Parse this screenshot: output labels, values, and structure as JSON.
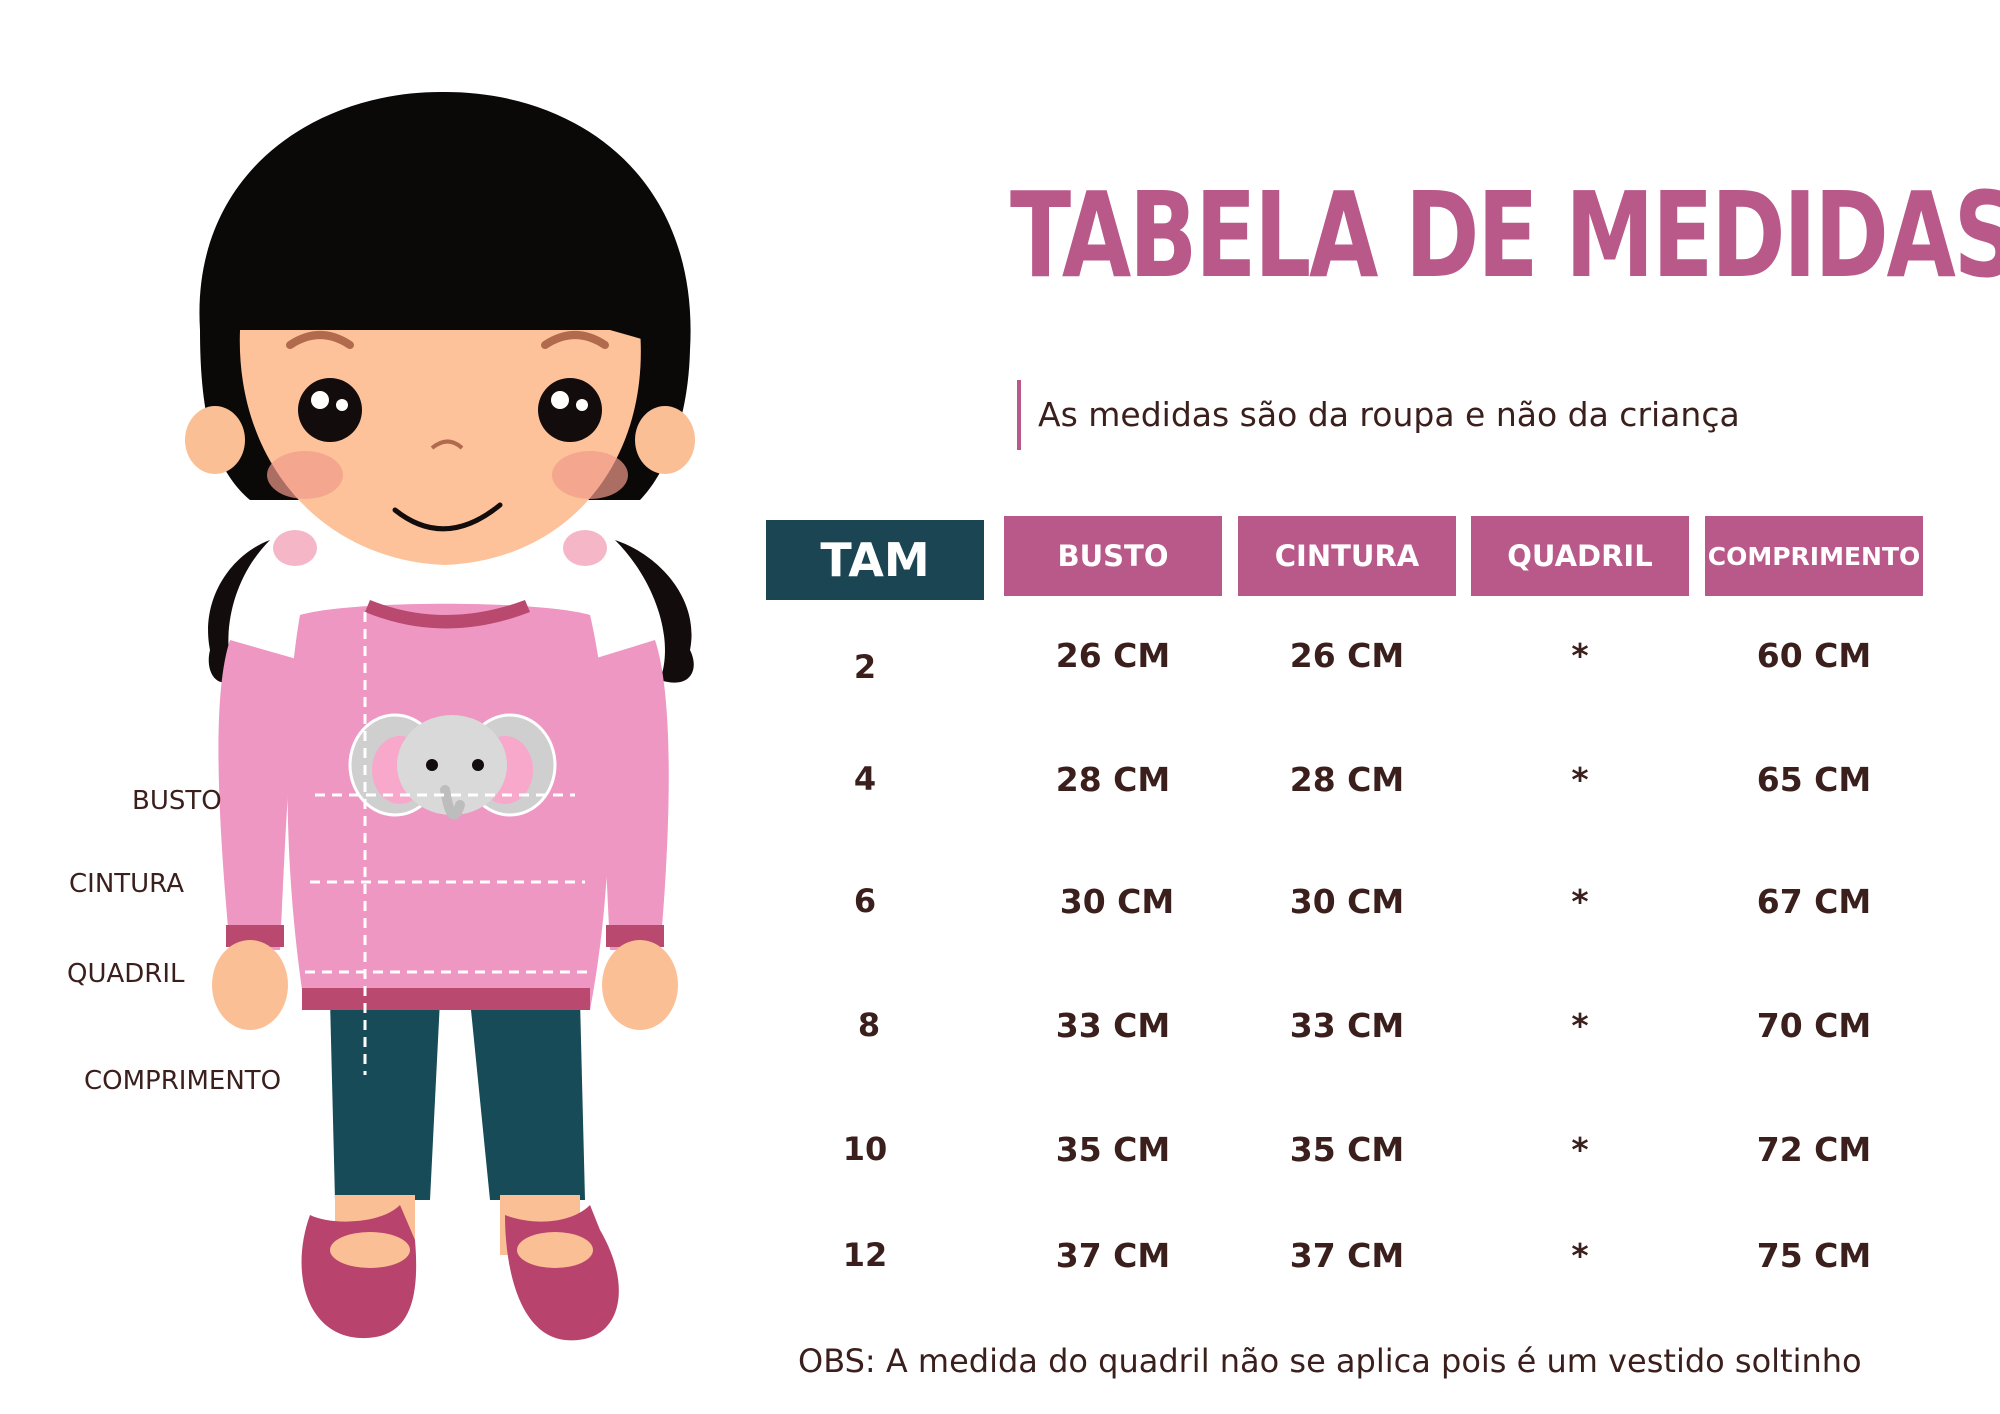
{
  "title": "TABELA DE MEDIDAS",
  "subtitle": "As medidas são da roupa e não da criança",
  "table": {
    "headers": [
      "TAM",
      "BUSTO",
      "CINTURA",
      "QUADRIL",
      "COMPRIMENTO"
    ],
    "rows": [
      [
        "2",
        "26 CM",
        "26 CM",
        "*",
        "60 CM"
      ],
      [
        "4",
        "28 CM",
        "28 CM",
        "*",
        "65 CM"
      ],
      [
        "6",
        "30 CM",
        "30 CM",
        "*",
        "67 CM"
      ],
      [
        "8",
        "33 CM",
        "33 CM",
        "*",
        "70 CM"
      ],
      [
        "10",
        "35 CM",
        "35 CM",
        "*",
        "72 CM"
      ],
      [
        "12",
        "37 CM",
        "37 CM",
        "*",
        "75 CM"
      ]
    ]
  },
  "figure_labels": {
    "busto": "BUSTO",
    "cintura": "CINTURA",
    "quadril": "QUADRIL",
    "comprimento": "COMPRIMENTO"
  },
  "note": "OBS: A medida do quadril não se aplica pois é um vestido soltinho",
  "colors": {
    "title_pink": "#b9598a",
    "header_dark": "#1b4553",
    "text_brown": "#3a1f1c",
    "shirt_pink": "#ee97c3",
    "pants_teal": "#164b57"
  }
}
